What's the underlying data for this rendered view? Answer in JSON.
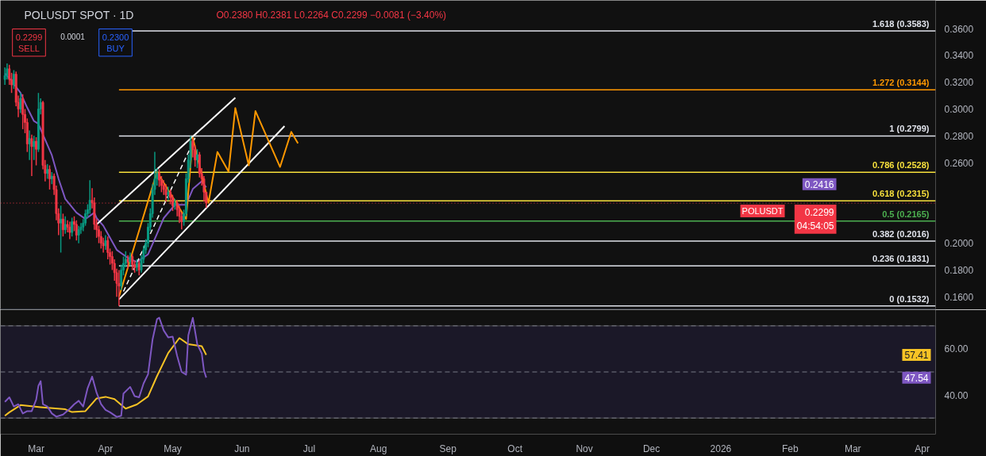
{
  "chart_data": [
    {
      "type": "candlestick",
      "title": "POLUSDT SPOT · 1D",
      "subtitle": "O0.2380 H0.2381 L0.2264 C0.2299 −0.0081 (−3.40%)",
      "x": [
        "2025-02-15",
        "2025-02-16",
        "2025-02-17",
        "2025-02-18",
        "2025-02-19",
        "2025-02-20",
        "2025-02-21",
        "2025-02-22",
        "2025-02-23",
        "2025-02-24",
        "2025-02-25",
        "2025-02-26",
        "2025-02-27",
        "2025-02-28",
        "2025-03-01",
        "2025-03-02",
        "2025-03-03",
        "2025-03-04",
        "2025-03-05",
        "2025-03-06",
        "2025-03-07",
        "2025-03-08",
        "2025-03-09",
        "2025-03-10",
        "2025-03-11",
        "2025-03-12",
        "2025-03-13",
        "2025-03-14",
        "2025-03-15",
        "2025-03-16",
        "2025-03-17",
        "2025-03-18",
        "2025-03-19",
        "2025-03-20",
        "2025-03-21",
        "2025-03-22",
        "2025-03-23",
        "2025-03-24",
        "2025-03-25",
        "2025-03-26",
        "2025-03-27",
        "2025-03-28",
        "2025-03-29",
        "2025-03-30",
        "2025-03-31",
        "2025-04-01",
        "2025-04-02",
        "2025-04-03",
        "2025-04-04",
        "2025-04-05",
        "2025-04-06",
        "2025-04-07",
        "2025-04-08",
        "2025-04-09",
        "2025-04-10",
        "2025-04-11",
        "2025-04-12",
        "2025-04-13",
        "2025-04-14",
        "2025-04-15",
        "2025-04-16",
        "2025-04-17",
        "2025-04-18",
        "2025-04-19",
        "2025-04-20",
        "2025-04-21",
        "2025-04-22",
        "2025-04-23",
        "2025-04-24",
        "2025-04-25",
        "2025-04-26",
        "2025-04-27",
        "2025-04-28",
        "2025-04-29",
        "2025-04-30",
        "2025-05-01",
        "2025-05-02",
        "2025-05-03",
        "2025-05-04",
        "2025-05-05",
        "2025-05-06",
        "2025-05-07",
        "2025-05-08",
        "2025-05-09",
        "2025-05-10",
        "2025-05-11",
        "2025-05-12",
        "2025-05-13",
        "2025-05-14",
        "2025-05-15",
        "2025-05-16"
      ],
      "ohlc": [
        [
          0.322,
          0.331,
          0.318,
          0.325
        ],
        [
          0.325,
          0.334,
          0.322,
          0.33
        ],
        [
          0.33,
          0.333,
          0.318,
          0.322
        ],
        [
          0.322,
          0.327,
          0.312,
          0.318
        ],
        [
          0.318,
          0.329,
          0.315,
          0.326
        ],
        [
          0.326,
          0.328,
          0.302,
          0.305
        ],
        [
          0.305,
          0.31,
          0.294,
          0.3
        ],
        [
          0.3,
          0.312,
          0.297,
          0.308
        ],
        [
          0.308,
          0.311,
          0.285,
          0.296
        ],
        [
          0.296,
          0.3,
          0.282,
          0.29
        ],
        [
          0.29,
          0.293,
          0.268,
          0.274
        ],
        [
          0.274,
          0.284,
          0.262,
          0.278
        ],
        [
          0.278,
          0.281,
          0.25,
          0.272
        ],
        [
          0.272,
          0.28,
          0.262,
          0.276
        ],
        [
          0.276,
          0.279,
          0.258,
          0.27
        ],
        [
          0.27,
          0.312,
          0.268,
          0.3
        ],
        [
          0.3,
          0.308,
          0.296,
          0.305
        ],
        [
          0.305,
          0.306,
          0.255,
          0.258
        ],
        [
          0.258,
          0.262,
          0.246,
          0.252
        ],
        [
          0.252,
          0.259,
          0.248,
          0.255
        ],
        [
          0.255,
          0.258,
          0.24,
          0.248
        ],
        [
          0.248,
          0.253,
          0.244,
          0.25
        ],
        [
          0.25,
          0.252,
          0.236,
          0.24
        ],
        [
          0.24,
          0.243,
          0.217,
          0.222
        ],
        [
          0.222,
          0.226,
          0.206,
          0.215
        ],
        [
          0.215,
          0.228,
          0.193,
          0.218
        ],
        [
          0.218,
          0.222,
          0.205,
          0.21
        ],
        [
          0.21,
          0.22,
          0.207,
          0.214
        ],
        [
          0.214,
          0.217,
          0.208,
          0.212
        ],
        [
          0.212,
          0.216,
          0.203,
          0.208
        ],
        [
          0.208,
          0.219,
          0.205,
          0.216
        ],
        [
          0.216,
          0.22,
          0.209,
          0.214
        ],
        [
          0.214,
          0.217,
          0.202,
          0.206
        ],
        [
          0.206,
          0.213,
          0.2,
          0.21
        ],
        [
          0.21,
          0.215,
          0.207,
          0.212
        ],
        [
          0.212,
          0.218,
          0.209,
          0.215
        ],
        [
          0.215,
          0.225,
          0.213,
          0.222
        ],
        [
          0.222,
          0.229,
          0.219,
          0.225
        ],
        [
          0.225,
          0.247,
          0.222,
          0.232
        ],
        [
          0.232,
          0.241,
          0.226,
          0.23
        ],
        [
          0.23,
          0.234,
          0.21,
          0.214
        ],
        [
          0.214,
          0.218,
          0.204,
          0.21
        ],
        [
          0.21,
          0.213,
          0.2,
          0.205
        ],
        [
          0.205,
          0.209,
          0.196,
          0.2
        ],
        [
          0.2,
          0.204,
          0.193,
          0.198
        ],
        [
          0.198,
          0.206,
          0.195,
          0.202
        ],
        [
          0.202,
          0.205,
          0.188,
          0.193
        ],
        [
          0.193,
          0.196,
          0.184,
          0.19
        ],
        [
          0.19,
          0.194,
          0.18,
          0.185
        ],
        [
          0.185,
          0.188,
          0.172,
          0.178
        ],
        [
          0.178,
          0.181,
          0.16,
          0.17
        ],
        [
          0.17,
          0.18,
          0.1532,
          0.168
        ],
        [
          0.168,
          0.184,
          0.165,
          0.18
        ],
        [
          0.18,
          0.19,
          0.176,
          0.185
        ],
        [
          0.185,
          0.194,
          0.182,
          0.188
        ],
        [
          0.188,
          0.191,
          0.181,
          0.186
        ],
        [
          0.186,
          0.193,
          0.183,
          0.19
        ],
        [
          0.19,
          0.192,
          0.18,
          0.184
        ],
        [
          0.184,
          0.187,
          0.178,
          0.182
        ],
        [
          0.182,
          0.188,
          0.179,
          0.185
        ],
        [
          0.185,
          0.187,
          0.176,
          0.18
        ],
        [
          0.18,
          0.191,
          0.178,
          0.188
        ],
        [
          0.188,
          0.198,
          0.185,
          0.195
        ],
        [
          0.195,
          0.203,
          0.192,
          0.2
        ],
        [
          0.2,
          0.215,
          0.197,
          0.212
        ],
        [
          0.212,
          0.226,
          0.209,
          0.222
        ],
        [
          0.222,
          0.244,
          0.219,
          0.24
        ],
        [
          0.24,
          0.268,
          0.236,
          0.248
        ],
        [
          0.248,
          0.256,
          0.243,
          0.252
        ],
        [
          0.252,
          0.255,
          0.242,
          0.247
        ],
        [
          0.247,
          0.25,
          0.238,
          0.243
        ],
        [
          0.243,
          0.247,
          0.236,
          0.24
        ],
        [
          0.24,
          0.244,
          0.231,
          0.236
        ],
        [
          0.236,
          0.242,
          0.232,
          0.238
        ],
        [
          0.238,
          0.24,
          0.229,
          0.234
        ],
        [
          0.234,
          0.236,
          0.224,
          0.228
        ],
        [
          0.228,
          0.233,
          0.225,
          0.23
        ],
        [
          0.23,
          0.232,
          0.22,
          0.225
        ],
        [
          0.225,
          0.228,
          0.215,
          0.22
        ],
        [
          0.22,
          0.223,
          0.2103,
          0.216
        ],
        [
          0.216,
          0.225,
          0.213,
          0.222
        ],
        [
          0.222,
          0.252,
          0.22,
          0.248
        ],
        [
          0.248,
          0.266,
          0.245,
          0.262
        ],
        [
          0.262,
          0.2799,
          0.256,
          0.276
        ],
        [
          0.276,
          0.278,
          0.264,
          0.27
        ],
        [
          0.27,
          0.273,
          0.257,
          0.262
        ],
        [
          0.262,
          0.27,
          0.256,
          0.266
        ],
        [
          0.266,
          0.268,
          0.249,
          0.252
        ],
        [
          0.252,
          0.256,
          0.243,
          0.248
        ],
        [
          0.248,
          0.25,
          0.231,
          0.238
        ],
        [
          0.238,
          0.2381,
          0.2264,
          0.2299
        ]
      ],
      "colors": [
        "#089981",
        "#089981",
        "#f23645",
        "#f23645",
        "#089981",
        "#f23645",
        "#f23645",
        "#089981",
        "#f23645",
        "#f23645",
        "#f23645",
        "#089981",
        "#f23645",
        "#089981",
        "#f23645",
        "#089981",
        "#089981",
        "#f23645",
        "#f23645",
        "#089981",
        "#f23645",
        "#089981",
        "#f23645",
        "#f23645",
        "#f23645",
        "#089981",
        "#f23645",
        "#089981",
        "#f23645",
        "#f23645",
        "#089981",
        "#f23645",
        "#f23645",
        "#089981",
        "#089981",
        "#089981",
        "#089981",
        "#089981",
        "#089981",
        "#f23645",
        "#f23645",
        "#f23645",
        "#f23645",
        "#f23645",
        "#f23645",
        "#089981",
        "#f23645",
        "#f23645",
        "#f23645",
        "#f23645",
        "#f23645",
        "#f23645",
        "#089981",
        "#089981",
        "#089981",
        "#f23645",
        "#089981",
        "#f23645",
        "#f23645",
        "#089981",
        "#f23645",
        "#089981",
        "#089981",
        "#089981",
        "#089981",
        "#089981",
        "#089981",
        "#089981",
        "#089981",
        "#f23645",
        "#f23645",
        "#f23645",
        "#f23645",
        "#089981",
        "#f23645",
        "#f23645",
        "#089981",
        "#f23645",
        "#f23645",
        "#f23645",
        "#089981",
        "#089981",
        "#089981",
        "#089981",
        "#f23645",
        "#f23645",
        "#089981",
        "#f23645",
        "#f23645",
        "#f23645",
        "#f23645"
      ],
      "series": [
        {
          "type": "line",
          "color": "#7e57c2",
          "x": [
            "2025-02-15",
            "2025-02-18",
            "2025-02-22",
            "2025-02-25",
            "2025-02-28",
            "2025-03-02",
            "2025-03-04",
            "2025-03-08",
            "2025-03-11",
            "2025-03-14",
            "2025-03-19",
            "2025-03-23",
            "2025-03-27",
            "2025-03-28",
            "2025-03-31",
            "2025-04-02",
            "2025-04-06",
            "2025-04-11",
            "2025-04-15",
            "2025-04-20",
            "2025-04-24",
            "2025-04-27",
            "2025-05-02",
            "2025-05-07",
            "2025-05-10",
            "2025-05-14",
            "2025-05-16"
          ],
          "values": [
            0.3266,
            0.321,
            0.312,
            0.301,
            0.291,
            0.289,
            0.281,
            0.2656,
            0.248,
            0.233,
            0.2228,
            0.218,
            0.2228,
            0.2187,
            0.213,
            0.207,
            0.195,
            0.189,
            0.186,
            0.1917,
            0.207,
            0.2187,
            0.2286,
            0.2286,
            0.2404,
            0.2462,
            0.2416
          ]
        },
        {
          "type": "line",
          "color": "#ffffff",
          "x": [
            "2025-03-28",
            "2025-05-29"
          ],
          "values": [
            0.214,
            0.3084
          ]
        },
        {
          "type": "line",
          "color": "#ffffff",
          "x": [
            "2025-04-07",
            "2025-06-20"
          ],
          "values": [
            0.158,
            0.2873
          ]
        },
        {
          "type": "line",
          "color": "#ffffff",
          "line_style": "dashed",
          "x": [
            "2025-04-09",
            "2025-05-11"
          ],
          "values": [
            0.164,
            0.2785
          ]
        },
        {
          "type": "line",
          "color": "#ff9800",
          "x": [
            "2025-04-07",
            "2025-04-24",
            "2025-05-07",
            "2025-05-10",
            "2025-05-17",
            "2025-05-21",
            "2025-05-26",
            "2025-05-29",
            "2025-06-04",
            "2025-06-07",
            "2025-06-18",
            "2025-06-23",
            "2025-06-26"
          ],
          "values": [
            0.16,
            0.2533,
            0.218,
            0.2785,
            0.23,
            0.268,
            0.2533,
            0.3008,
            0.258,
            0.2985,
            0.2568,
            0.283,
            0.2744
          ]
        }
      ],
      "ref_lines": [
        {
          "axis": "y",
          "value": 0.3583,
          "label": "1.618 (0.3583)",
          "color": "#e0e3eb"
        },
        {
          "axis": "y",
          "value": 0.3144,
          "label": "1.272 (0.3144)",
          "color": "#ff9800"
        },
        {
          "axis": "y",
          "value": 0.2799,
          "label": "1 (0.2799)",
          "color": "#e0e3eb"
        },
        {
          "axis": "y",
          "value": 0.2528,
          "label": "0.786 (0.2528)",
          "color": "#f7e03c"
        },
        {
          "axis": "y",
          "value": 0.2315,
          "label": "0.618 (0.2315)",
          "color": "#f7e03c"
        },
        {
          "axis": "y",
          "value": 0.2165,
          "label": "0.5 (0.2165)",
          "color": "#4caf50"
        },
        {
          "axis": "y",
          "value": 0.2016,
          "label": "0.382 (0.2016)",
          "color": "#e0e3eb"
        },
        {
          "axis": "y",
          "value": 0.1831,
          "label": "0.236 (0.1831)",
          "color": "#e0e3eb"
        },
        {
          "axis": "y",
          "value": 0.1532,
          "label": "0 (0.1532)",
          "color": "#e0e3eb"
        },
        {
          "axis": "y",
          "value": 0.2299,
          "color": "#f23645",
          "line_style": "dotted"
        }
      ],
      "annotations": [
        "0.2299\nSELL",
        "0.0001",
        "0.2300\nBUY",
        "0.2416",
        "POLUSDT",
        "0.2299\n04:54:05"
      ],
      "xlim": [
        "2025-02-13",
        "2026-04-07"
      ],
      "ylim": [
        0.151,
        0.381
      ],
      "yticks": [
        {
          "value": 0.16,
          "label": "0.1600"
        },
        {
          "value": 0.18,
          "label": "0.1800"
        },
        {
          "value": 0.2,
          "label": "0.2000"
        },
        {
          "value": 0.26,
          "label": "0.2600"
        },
        {
          "value": 0.28,
          "label": "0.2800"
        },
        {
          "value": 0.3,
          "label": "0.3000"
        },
        {
          "value": 0.32,
          "label": "0.3200"
        },
        {
          "value": 0.34,
          "label": "0.3400"
        },
        {
          "value": 0.36,
          "label": "0.3600"
        }
      ],
      "tick_labels": "y"
    },
    {
      "type": "line",
      "series": [
        {
          "color": "#f7c325",
          "x": [
            "2025-02-15",
            "2025-02-17",
            "2025-02-22",
            "2025-03-03",
            "2025-03-14",
            "2025-03-17",
            "2025-03-23",
            "2025-03-28",
            "2025-04-01",
            "2025-04-05",
            "2025-04-10",
            "2025-04-15",
            "2025-04-20",
            "2025-04-24",
            "2025-04-29",
            "2025-05-04",
            "2025-05-08",
            "2025-05-14",
            "2025-05-16"
          ],
          "values": [
            31,
            32.5,
            35.6,
            34.7,
            33.8,
            32.6,
            33,
            38.5,
            39.2,
            38.2,
            34.1,
            35.9,
            39.4,
            48.2,
            58.2,
            64.7,
            62,
            61.2,
            57.41
          ]
        },
        {
          "color": "#7e57c2",
          "x": [
            "2025-02-15",
            "2025-02-17",
            "2025-02-19",
            "2025-02-21",
            "2025-02-23",
            "2025-02-25",
            "2025-02-27",
            "2025-03-01",
            "2025-03-02",
            "2025-03-03",
            "2025-03-04",
            "2025-03-06",
            "2025-03-08",
            "2025-03-10",
            "2025-03-13",
            "2025-03-16",
            "2025-03-18",
            "2025-03-20",
            "2025-03-22",
            "2025-03-24",
            "2025-03-26",
            "2025-03-28",
            "2025-03-30",
            "2025-04-01",
            "2025-04-03",
            "2025-04-06",
            "2025-04-08",
            "2025-04-09",
            "2025-04-12",
            "2025-04-14",
            "2025-04-16",
            "2025-04-18",
            "2025-04-20",
            "2025-04-22",
            "2025-04-24",
            "2025-04-25",
            "2025-04-27",
            "2025-04-29",
            "2025-05-01",
            "2025-05-03",
            "2025-05-05",
            "2025-05-07",
            "2025-05-08",
            "2025-05-10",
            "2025-05-12",
            "2025-05-14",
            "2025-05-15",
            "2025-05-16"
          ],
          "values": [
            37,
            39,
            35,
            36,
            32,
            33,
            33,
            38,
            44,
            46,
            36,
            35,
            32,
            30.6,
            31.5,
            34,
            36,
            37.5,
            35,
            43,
            48,
            41,
            36,
            33.5,
            32.5,
            30.5,
            31,
            40.6,
            43.5,
            39.5,
            39,
            45,
            49,
            64,
            72.9,
            73.5,
            68,
            65,
            65.3,
            57,
            50,
            48.8,
            65.9,
            73.5,
            62,
            58,
            50.6,
            47.54
          ]
        }
      ],
      "ref_lines": [
        {
          "axis": "y",
          "value": 70,
          "color": "#787b86",
          "line_style": "dashed"
        },
        {
          "axis": "y",
          "value": 50,
          "color": "#787b86",
          "line_style": "dashed"
        },
        {
          "axis": "y",
          "value": 30,
          "color": "#787b86",
          "line_style": "dashed"
        }
      ],
      "bands": [
        {
          "axis": "y",
          "from": 30,
          "to": 70,
          "color": "#1b1828"
        }
      ],
      "annotations": [
        "57.41",
        "47.54"
      ],
      "xlim": [
        "2025-02-13",
        "2026-04-07"
      ],
      "ylim": [
        23,
        77
      ],
      "xticks": [
        {
          "value": "2025-03-01",
          "label": "Mar"
        },
        {
          "value": "2025-04-01",
          "label": "Apr"
        },
        {
          "value": "2025-05-01",
          "label": "May"
        },
        {
          "value": "2025-06-01",
          "label": "Jun"
        },
        {
          "value": "2025-07-01",
          "label": "Jul"
        },
        {
          "value": "2025-08-01",
          "label": "Aug"
        },
        {
          "value": "2025-09-01",
          "label": "Sep"
        },
        {
          "value": "2025-10-01",
          "label": "Oct"
        },
        {
          "value": "2025-11-01",
          "label": "Nov"
        },
        {
          "value": "2025-12-01",
          "label": "Dec"
        },
        {
          "value": "2026-01-01",
          "label": "2026"
        },
        {
          "value": "2026-02-01",
          "label": "Feb"
        },
        {
          "value": "2026-03-01",
          "label": "Mar"
        },
        {
          "value": "2026-04-01",
          "label": "Apr"
        }
      ],
      "yticks": [
        {
          "value": 60,
          "label": "60.00"
        },
        {
          "value": 40,
          "label": "40.00"
        }
      ]
    }
  ]
}
